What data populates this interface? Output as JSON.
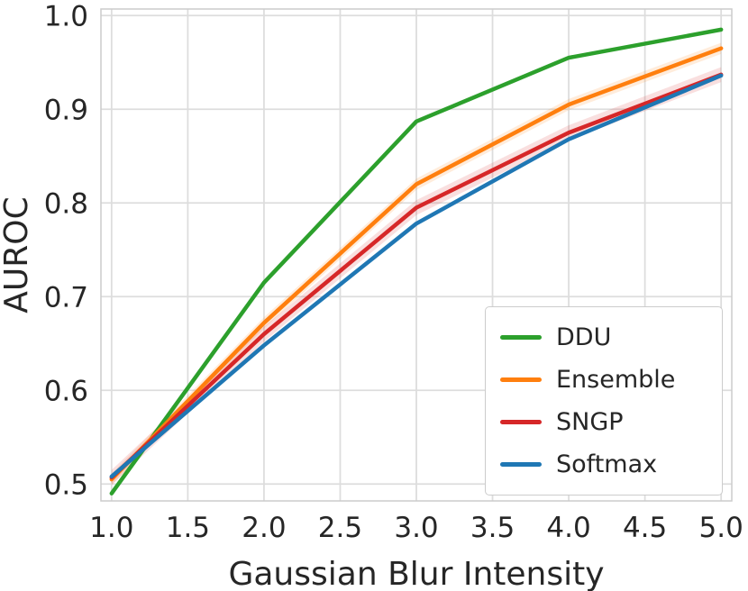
{
  "chart_data": {
    "type": "line",
    "title": "",
    "xlabel": "Gaussian Blur Intensity",
    "ylabel": "AUROC",
    "x": [
      1.0,
      2.0,
      3.0,
      4.0,
      5.0
    ],
    "xlim": [
      0.93,
      5.07
    ],
    "ylim": [
      0.482,
      1.007
    ],
    "x_ticks": [
      1.0,
      1.5,
      2.0,
      2.5,
      3.0,
      3.5,
      4.0,
      4.5,
      5.0
    ],
    "y_ticks": [
      0.5,
      0.6,
      0.7,
      0.8,
      0.9,
      1.0
    ],
    "grid": true,
    "grid_color": "#dddddd",
    "frame_color": "#cccccc",
    "text_color": "#262626",
    "legend_position": "lower right",
    "series": [
      {
        "name": "DDU",
        "color": "#2ca02c",
        "values": [
          0.49,
          0.715,
          0.887,
          0.955,
          0.985
        ],
        "ci_half_width": 0
      },
      {
        "name": "Ensemble",
        "color": "#ff7f0e",
        "values": [
          0.505,
          0.672,
          0.82,
          0.905,
          0.965
        ],
        "ci_half_width": 0.006
      },
      {
        "name": "SNGP",
        "color": "#d62728",
        "values": [
          0.507,
          0.66,
          0.795,
          0.875,
          0.937
        ],
        "ci_half_width": 0.008
      },
      {
        "name": "Softmax",
        "color": "#1f77b4",
        "values": [
          0.508,
          0.648,
          0.778,
          0.868,
          0.936
        ],
        "ci_half_width": 0
      }
    ]
  }
}
